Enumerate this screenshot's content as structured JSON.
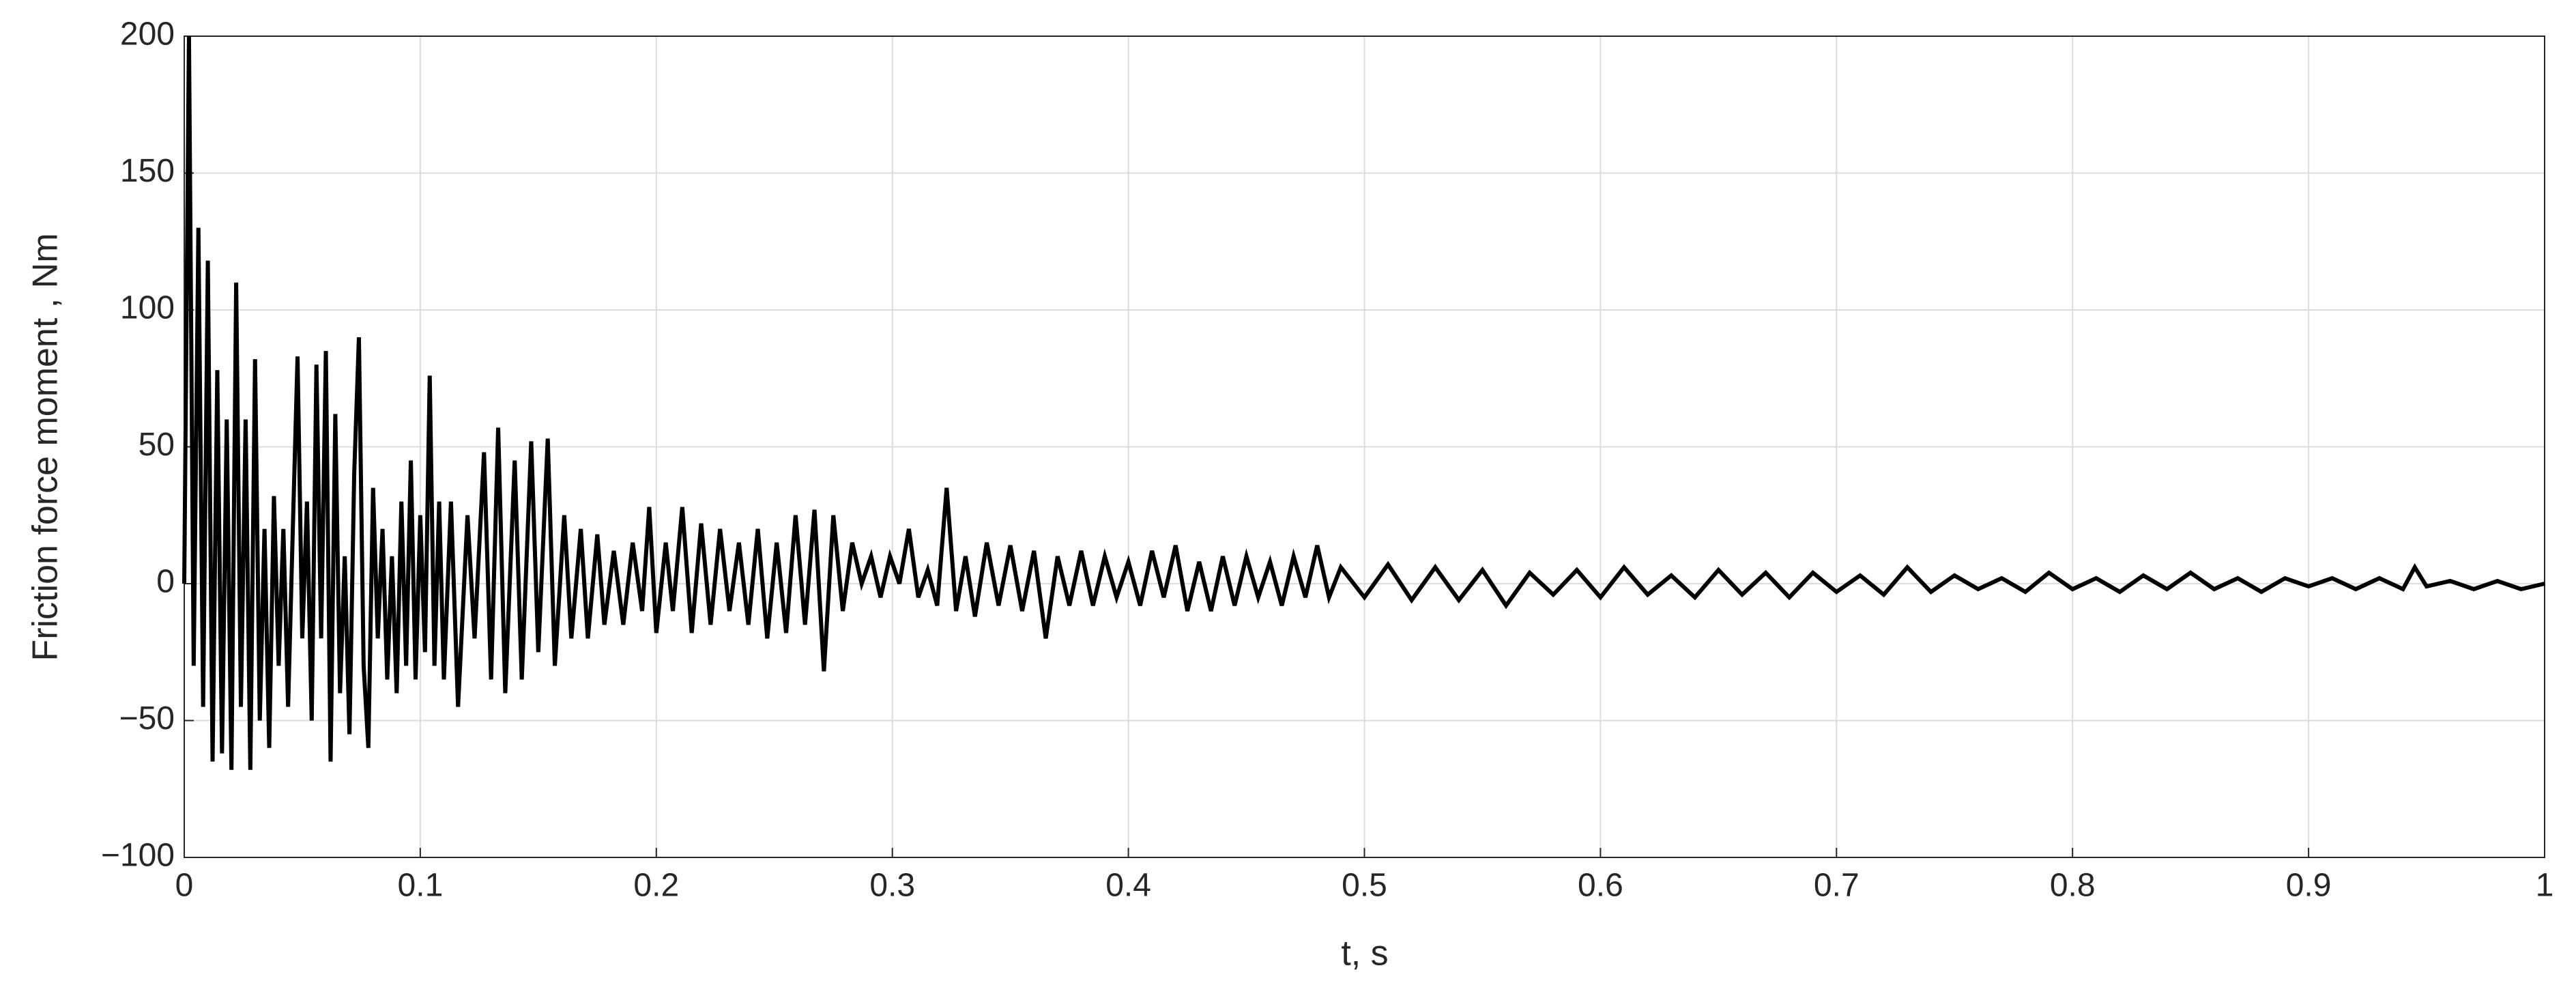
{
  "chart_data": {
    "type": "line",
    "xlabel": "t, s",
    "ylabel": "Friction force moment ,  Nm",
    "xlim": [
      0,
      1
    ],
    "ylim": [
      -100,
      200
    ],
    "xticks": [
      0,
      0.1,
      0.2,
      0.3,
      0.4,
      0.5,
      0.6,
      0.7,
      0.8,
      0.9,
      1
    ],
    "yticks": [
      {
        "value": -100,
        "label": "−100"
      },
      {
        "value": -50,
        "label": "−50"
      },
      0,
      50,
      100,
      150,
      200
    ],
    "grid": true,
    "x": [
      0,
      0.002,
      0.004,
      0.006,
      0.008,
      0.01,
      0.012,
      0.014,
      0.016,
      0.018,
      0.02,
      0.022,
      0.024,
      0.026,
      0.028,
      0.03,
      0.032,
      0.034,
      0.036,
      0.038,
      0.04,
      0.042,
      0.044,
      0.046,
      0.048,
      0.05,
      0.052,
      0.054,
      0.056,
      0.058,
      0.06,
      0.062,
      0.064,
      0.066,
      0.068,
      0.07,
      0.072,
      0.074,
      0.076,
      0.078,
      0.08,
      0.082,
      0.084,
      0.086,
      0.088,
      0.09,
      0.092,
      0.094,
      0.096,
      0.098,
      0.1,
      0.102,
      0.104,
      0.106,
      0.108,
      0.11,
      0.113,
      0.116,
      0.12,
      0.123,
      0.127,
      0.13,
      0.133,
      0.136,
      0.14,
      0.143,
      0.147,
      0.15,
      0.154,
      0.157,
      0.161,
      0.164,
      0.168,
      0.171,
      0.175,
      0.178,
      0.182,
      0.186,
      0.19,
      0.194,
      0.197,
      0.2,
      0.204,
      0.207,
      0.211,
      0.215,
      0.219,
      0.223,
      0.227,
      0.231,
      0.235,
      0.239,
      0.243,
      0.247,
      0.251,
      0.255,
      0.259,
      0.263,
      0.267,
      0.271,
      0.275,
      0.279,
      0.283,
      0.287,
      0.291,
      0.295,
      0.299,
      0.303,
      0.307,
      0.311,
      0.315,
      0.319,
      0.323,
      0.327,
      0.331,
      0.335,
      0.34,
      0.345,
      0.35,
      0.355,
      0.36,
      0.365,
      0.37,
      0.375,
      0.38,
      0.385,
      0.39,
      0.395,
      0.4,
      0.405,
      0.41,
      0.415,
      0.42,
      0.425,
      0.43,
      0.435,
      0.44,
      0.445,
      0.45,
      0.455,
      0.46,
      0.465,
      0.47,
      0.475,
      0.48,
      0.485,
      0.49,
      0.5,
      0.51,
      0.52,
      0.53,
      0.54,
      0.55,
      0.56,
      0.57,
      0.58,
      0.59,
      0.6,
      0.61,
      0.62,
      0.63,
      0.64,
      0.65,
      0.66,
      0.67,
      0.68,
      0.69,
      0.7,
      0.71,
      0.72,
      0.73,
      0.74,
      0.75,
      0.76,
      0.77,
      0.78,
      0.79,
      0.8,
      0.81,
      0.82,
      0.83,
      0.84,
      0.85,
      0.86,
      0.87,
      0.88,
      0.89,
      0.9,
      0.91,
      0.92,
      0.93,
      0.94,
      0.945,
      0.95,
      0.96,
      0.97,
      0.98,
      0.99,
      1
    ],
    "series": [
      {
        "color": "#000000",
        "values": [
          0,
          200,
          -30,
          130,
          -45,
          118,
          -65,
          78,
          -62,
          60,
          -68,
          110,
          -45,
          60,
          -68,
          82,
          -50,
          20,
          -60,
          32,
          -30,
          20,
          -45,
          20,
          83,
          -20,
          30,
          -50,
          80,
          -20,
          85,
          -65,
          62,
          -40,
          10,
          -55,
          40,
          90,
          -30,
          -60,
          35,
          -20,
          20,
          -35,
          10,
          -40,
          30,
          -30,
          45,
          -35,
          25,
          -25,
          76,
          -30,
          30,
          -35,
          30,
          -45,
          25,
          -20,
          48,
          -35,
          57,
          -40,
          45,
          -35,
          52,
          -25,
          53,
          -30,
          25,
          -20,
          20,
          -20,
          18,
          -15,
          12,
          -15,
          15,
          -10,
          28,
          -18,
          15,
          -10,
          28,
          -18,
          22,
          -15,
          20,
          -10,
          15,
          -15,
          20,
          -20,
          15,
          -18,
          25,
          -15,
          27,
          -32,
          25,
          -10,
          15,
          0,
          10,
          -5,
          10,
          0,
          20,
          -5,
          5,
          -8,
          35,
          -10,
          10,
          -12,
          15,
          -8,
          14,
          -10,
          12,
          -20,
          10,
          -8,
          12,
          -8,
          10,
          -5,
          8,
          -8,
          12,
          -5,
          14,
          -10,
          8,
          -10,
          10,
          -8,
          10,
          -5,
          8,
          -8,
          10,
          -5,
          14,
          -5,
          6,
          -5,
          7,
          -6,
          6,
          -6,
          5,
          -8,
          4,
          -4,
          5,
          -5,
          6,
          -4,
          3,
          -5,
          5,
          -4,
          4,
          -5,
          4,
          -3,
          3,
          -4,
          6,
          -3,
          3,
          -2,
          2,
          -3,
          4,
          -2,
          2,
          -3,
          3,
          -2,
          4,
          -2,
          2,
          -3,
          2,
          -1,
          2,
          -2,
          2,
          -2,
          6,
          -1,
          1,
          -2,
          1,
          -2,
          0
        ]
      }
    ]
  }
}
